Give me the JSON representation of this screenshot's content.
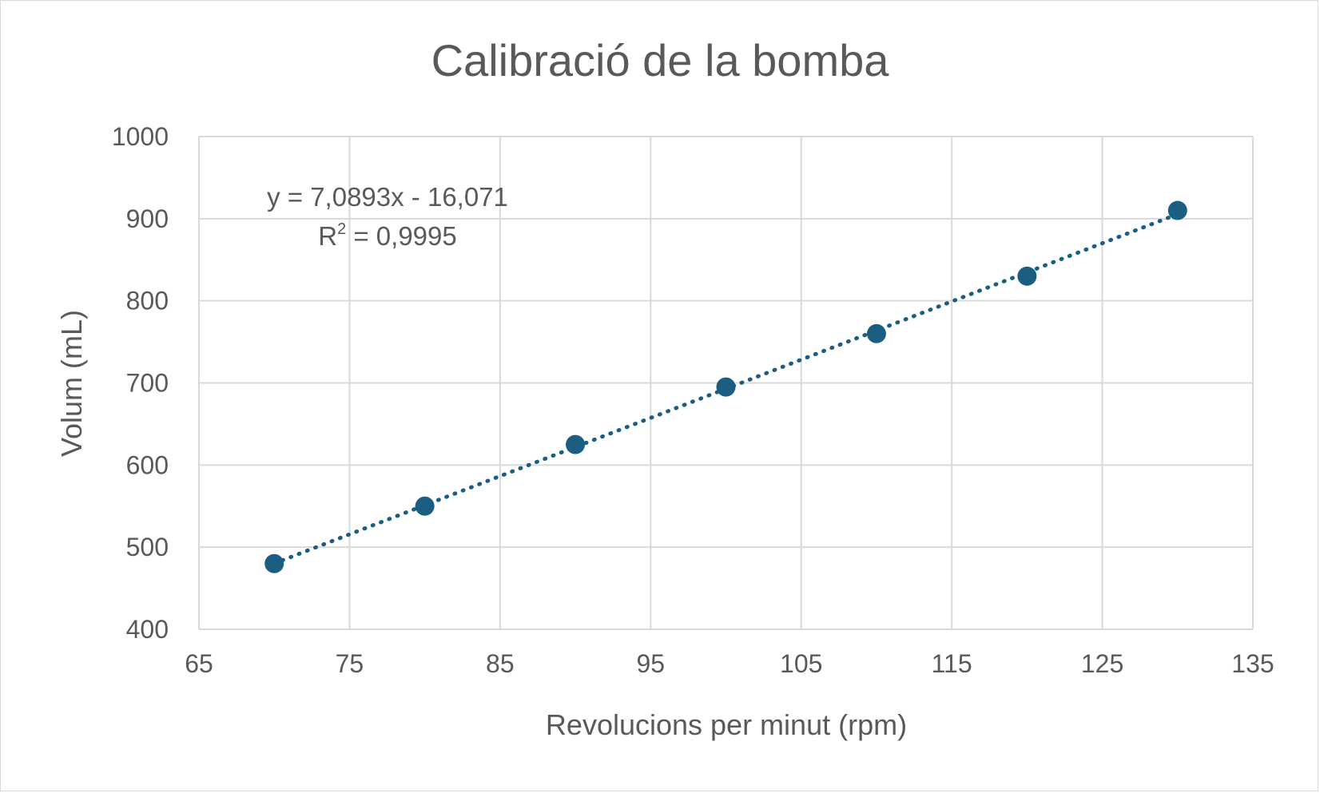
{
  "chart_data": {
    "type": "scatter",
    "title": "Calibració de la bomba",
    "xlabel": "Revolucions per minut (rpm)",
    "ylabel": "Volum (mL)",
    "xlim": [
      65,
      135
    ],
    "ylim": [
      400,
      1000
    ],
    "x_ticks": [
      "65",
      "75",
      "85",
      "95",
      "105",
      "115",
      "125",
      "135"
    ],
    "y_ticks": [
      "400",
      "500",
      "600",
      "700",
      "800",
      "900",
      "1000"
    ],
    "grid": true,
    "series": [
      {
        "x": [
          70,
          80,
          90,
          100,
          110,
          120,
          130
        ],
        "y": [
          480,
          550,
          625,
          695,
          760,
          830,
          910
        ]
      }
    ],
    "trendline": {
      "type": "linear",
      "slope": 7.0893,
      "intercept": -16.071,
      "style": "dotted",
      "equation_text": "y = 7,0893x - 16,071",
      "r2_prefix": "R",
      "r2_superscript": "2",
      "r2_value_text": " = 0,9995"
    },
    "colors": {
      "marker": "#1b5e82",
      "trendline": "#1b5e82",
      "grid": "#d9d9d9",
      "text": "#595959"
    }
  }
}
